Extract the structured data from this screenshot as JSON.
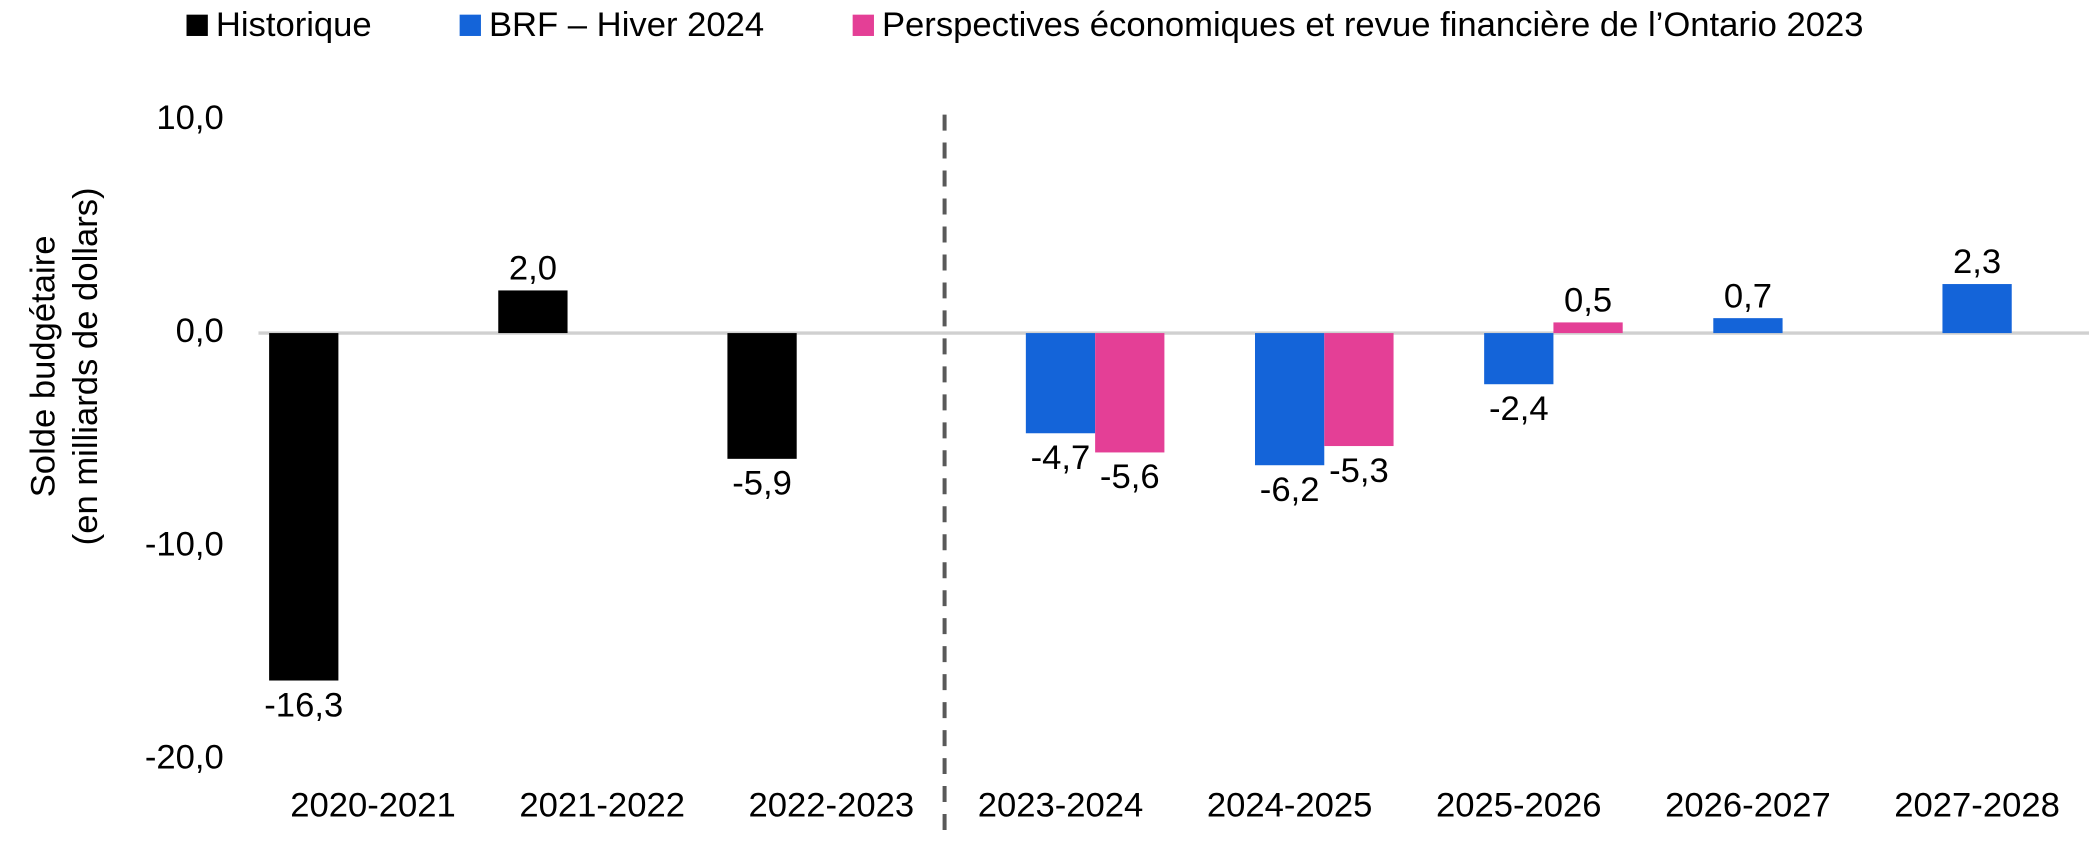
{
  "chart_data": {
    "type": "bar",
    "ylabel": [
      "Solde budgétaire",
      "(en milliards de dollars)"
    ],
    "categories": [
      "2020-2021",
      "2021-2022",
      "2022-2023",
      "2023-2024",
      "2024-2025",
      "2025-2026",
      "2026-2027",
      "2027-2028"
    ],
    "series": [
      {
        "name": "Historique",
        "color": "#000000",
        "values": [
          -16.3,
          2.0,
          -5.9,
          null,
          null,
          null,
          null,
          null
        ],
        "value_labels": [
          "-16,3",
          "2,0",
          "-5,9",
          null,
          null,
          null,
          null,
          null
        ]
      },
      {
        "name": "BRF – Hiver 2024",
        "color": "#1464d9",
        "values": [
          null,
          null,
          null,
          -4.7,
          -6.2,
          -2.4,
          0.7,
          2.3
        ],
        "value_labels": [
          null,
          null,
          null,
          "-4,7",
          "-6,2",
          "-2,4",
          "0,7",
          "2,3"
        ]
      },
      {
        "name": "Perspectives économiques et revue financière de l’Ontario 2023",
        "color": "#e43f96",
        "values": [
          null,
          null,
          null,
          -5.6,
          -5.3,
          0.5,
          null,
          null
        ],
        "value_labels": [
          null,
          null,
          null,
          "-5,6",
          "-5,3",
          "0,5",
          null,
          null
        ]
      }
    ],
    "ylim": [
      -20,
      10
    ],
    "yticks": [
      {
        "value": 10,
        "label": "10,0"
      },
      {
        "value": 0,
        "label": "0,0"
      },
      {
        "value": -10,
        "label": "-10,0"
      },
      {
        "value": -20,
        "label": "-20,0"
      }
    ],
    "grid": false,
    "legend": "top"
  }
}
